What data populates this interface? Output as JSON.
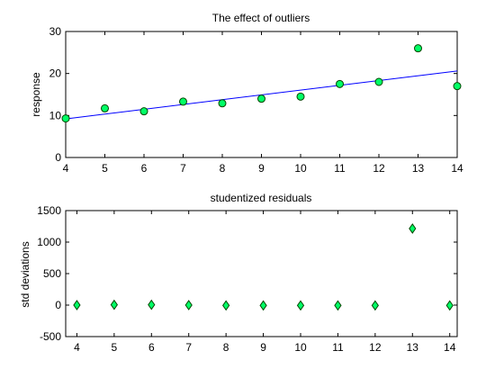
{
  "colors": {
    "background": "#ffffff",
    "axis": "#000000",
    "fit_line": "#0000ff",
    "marker_fill": "#00ff66",
    "marker_edge": "#004400"
  },
  "chart_data": [
    {
      "type": "scatter",
      "title": "The effect of outliers",
      "xlabel": "",
      "ylabel": "response",
      "xlim": [
        4,
        14
      ],
      "ylim": [
        0,
        30
      ],
      "xticks": [
        4,
        5,
        6,
        7,
        8,
        9,
        10,
        11,
        12,
        13,
        14
      ],
      "yticks": [
        0,
        10,
        20,
        30
      ],
      "grid": false,
      "marker": "circle",
      "series": [
        {
          "x": [
            4,
            5,
            6,
            7,
            8,
            9,
            10,
            11,
            12,
            13,
            14
          ],
          "y": [
            9.3,
            11.7,
            11.0,
            13.3,
            12.9,
            14.0,
            14.5,
            17.5,
            18.0,
            26.0,
            17.0
          ]
        }
      ],
      "fit_line": {
        "x": [
          4,
          14
        ],
        "y": [
          9.2,
          20.6
        ]
      }
    },
    {
      "type": "scatter",
      "title": "studentized residuals",
      "xlabel": "",
      "ylabel": "std deviations",
      "xlim": [
        3.7,
        14.2
      ],
      "ylim": [
        -500,
        1500
      ],
      "xticks": [
        4,
        5,
        6,
        7,
        8,
        9,
        10,
        11,
        12,
        13,
        14
      ],
      "yticks": [
        -500,
        0,
        500,
        1000,
        1500
      ],
      "grid": false,
      "marker": "diamond",
      "series": [
        {
          "x": [
            4,
            5,
            6,
            7,
            8,
            9,
            10,
            11,
            12,
            13,
            14
          ],
          "y": [
            0,
            5,
            5,
            0,
            -5,
            -5,
            -5,
            -5,
            -5,
            1215,
            -5
          ]
        }
      ]
    }
  ]
}
